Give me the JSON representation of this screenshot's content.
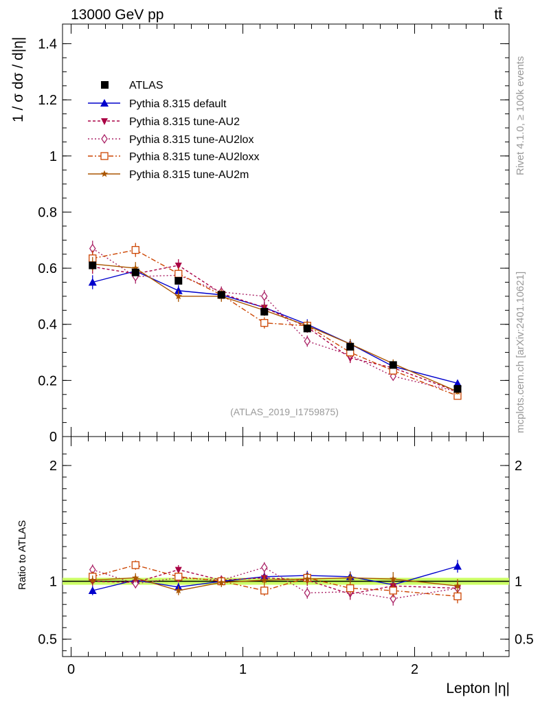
{
  "header": {
    "energy_label": "13000 GeV pp",
    "process_label": "tt̄",
    "side_rivet": "Rivet 4.1.0, ≥ 100k events",
    "side_mcplots": "mcplots.cern.ch [arXiv:2401.10621]",
    "analysis_id": "(ATLAS_2019_I1759875)"
  },
  "chart_data": [
    {
      "type": "line",
      "panel": "main",
      "ylabel": "1 / σ  dσ / d|η|",
      "ylim": [
        0,
        1.47
      ],
      "yticks": [
        0,
        0.2,
        0.4,
        0.6,
        0.8,
        1,
        1.2,
        1.4
      ],
      "ytick_labels": [
        "0",
        "0.2",
        "0.4",
        "0.6",
        "0.8",
        "1",
        "1.2",
        "1.4"
      ],
      "xlim": [
        -0.05,
        2.55
      ],
      "x": [
        0.125,
        0.375,
        0.625,
        0.875,
        1.125,
        1.375,
        1.625,
        1.875,
        2.25
      ],
      "series": [
        {
          "name": "ATLAS",
          "color": "#000000",
          "marker": "square",
          "values": [
            0.61,
            0.585,
            0.555,
            0.505,
            0.445,
            0.385,
            0.32,
            0.255,
            0.17
          ],
          "errors": [
            0.012,
            0.012,
            0.011,
            0.01,
            0.01,
            0.009,
            0.009,
            0.008,
            0.007
          ]
        },
        {
          "name": "Pythia 8.315 default",
          "color": "#0000cc",
          "marker": "triangle",
          "dash": "",
          "values": [
            0.55,
            0.59,
            0.52,
            0.505,
            0.46,
            0.4,
            0.33,
            0.25,
            0.19
          ],
          "errors": [
            0.025,
            0.02,
            0.02,
            0.02,
            0.02,
            0.018,
            0.015,
            0.013,
            0.01
          ]
        },
        {
          "name": "Pythia 8.315 tune-AU2",
          "color": "#aa0044",
          "marker": "triangle-down",
          "dash": "4,3",
          "values": [
            0.605,
            0.58,
            0.61,
            0.51,
            0.46,
            0.39,
            0.28,
            0.245,
            0.16
          ],
          "errors": [
            0.025,
            0.025,
            0.022,
            0.02,
            0.02,
            0.02,
            0.018,
            0.015,
            0.01
          ]
        },
        {
          "name": "Pythia 8.315 tune-AU2lox",
          "color": "#aa2266",
          "marker": "diamond",
          "dash": "2,3",
          "values": [
            0.67,
            0.57,
            0.575,
            0.515,
            0.5,
            0.34,
            0.29,
            0.215,
            0.16
          ],
          "errors": [
            0.028,
            0.025,
            0.022,
            0.02,
            0.022,
            0.02,
            0.018,
            0.015,
            0.01
          ]
        },
        {
          "name": "Pythia 8.315 tune-AU2loxx",
          "color": "#cc4400",
          "marker": "square-open",
          "dash": "7,3,2,3",
          "values": [
            0.635,
            0.665,
            0.58,
            0.505,
            0.405,
            0.395,
            0.3,
            0.235,
            0.145
          ],
          "errors": [
            0.028,
            0.025,
            0.022,
            0.02,
            0.02,
            0.018,
            0.018,
            0.015,
            0.01
          ]
        },
        {
          "name": "Pythia 8.315 tune-AU2m",
          "color": "#aa5500",
          "marker": "star",
          "dash": "",
          "values": [
            0.615,
            0.6,
            0.5,
            0.5,
            0.45,
            0.395,
            0.33,
            0.26,
            0.16
          ],
          "errors": [
            0.025,
            0.022,
            0.02,
            0.02,
            0.02,
            0.018,
            0.018,
            0.015,
            0.01
          ]
        }
      ]
    },
    {
      "type": "line",
      "panel": "ratio",
      "ylabel": "Ratio to ATLAS",
      "xlabel": "Lepton |η|",
      "ylim": [
        0.35,
        2.25
      ],
      "yticks": [
        0.5,
        1,
        2
      ],
      "ytick_labels": [
        "0.5",
        "1",
        "2"
      ],
      "xlim": [
        -0.05,
        2.55
      ],
      "xticks": [
        0,
        1,
        2
      ],
      "xtick_labels": [
        "0",
        "1",
        "2"
      ],
      "x": [
        0.125,
        0.375,
        0.625,
        0.875,
        1.125,
        1.375,
        1.625,
        1.875,
        2.25
      ],
      "band": {
        "color": "#ccff66",
        "halfwidth": 0.03
      },
      "series": [
        {
          "name": "Pythia 8.315 default",
          "values": [
            0.92,
            1.01,
            0.95,
            1.0,
            1.04,
            1.05,
            1.04,
            0.97,
            1.13
          ],
          "errors": [
            0.04,
            0.035,
            0.035,
            0.035,
            0.04,
            0.04,
            0.045,
            0.05,
            0.055
          ]
        },
        {
          "name": "Pythia 8.315 tune-AU2",
          "values": [
            1.0,
            0.99,
            1.1,
            1.01,
            1.03,
            1.01,
            0.89,
            0.96,
            0.94
          ],
          "errors": [
            0.04,
            0.04,
            0.04,
            0.04,
            0.045,
            0.05,
            0.05,
            0.06,
            0.06
          ]
        },
        {
          "name": "Pythia 8.315 tune-AU2lox",
          "values": [
            1.1,
            0.98,
            1.03,
            1.01,
            1.12,
            0.9,
            0.91,
            0.85,
            0.94
          ],
          "errors": [
            0.045,
            0.04,
            0.04,
            0.04,
            0.045,
            0.05,
            0.05,
            0.06,
            0.06
          ]
        },
        {
          "name": "Pythia 8.315 tune-AU2loxx",
          "values": [
            1.04,
            1.14,
            1.04,
            1.0,
            0.92,
            1.03,
            0.94,
            0.92,
            0.87
          ],
          "errors": [
            0.045,
            0.04,
            0.04,
            0.04,
            0.045,
            0.05,
            0.055,
            0.06,
            0.06
          ]
        },
        {
          "name": "Pythia 8.315 tune-AU2m",
          "values": [
            1.01,
            1.03,
            0.92,
            0.99,
            1.01,
            1.02,
            1.03,
            1.02,
            0.96
          ],
          "errors": [
            0.04,
            0.04,
            0.04,
            0.04,
            0.045,
            0.05,
            0.05,
            0.06,
            0.06
          ]
        }
      ]
    }
  ]
}
